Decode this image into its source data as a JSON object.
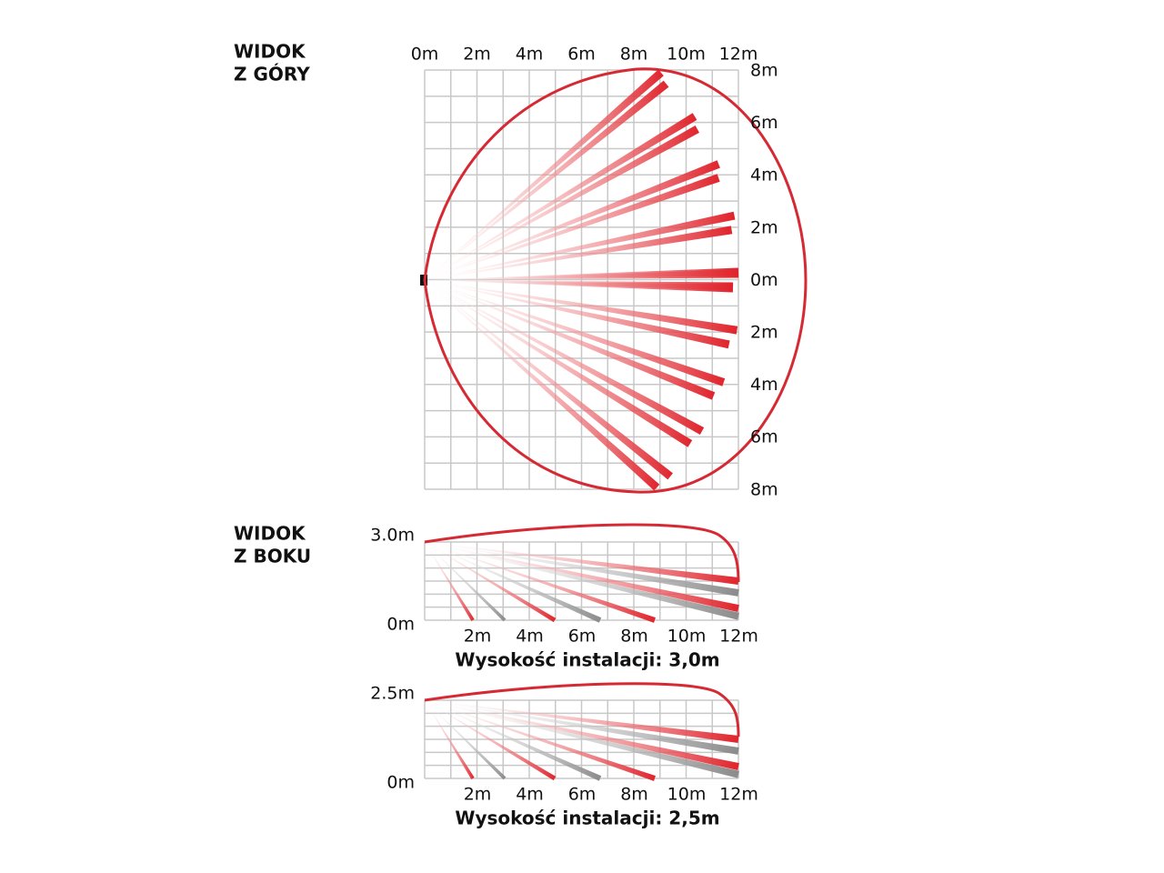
{
  "top_view": {
    "title": [
      "WIDOK",
      "Z GÓRY"
    ],
    "x_labels": [
      "0m",
      "2m",
      "4m",
      "6m",
      "8m",
      "10m",
      "12m"
    ],
    "y_labels": [
      "8m",
      "6m",
      "4m",
      "2m",
      "0m",
      "2m",
      "4m",
      "6m",
      "8m"
    ]
  },
  "side_title": [
    "WIDOK",
    "Z BOKU"
  ],
  "side_views": [
    {
      "top_label": "3.0m",
      "zero_label": "0m",
      "x_labels": [
        "2m",
        "4m",
        "6m",
        "8m",
        "10m",
        "12m"
      ],
      "caption": "Wysokość instalacji: 3,0m"
    },
    {
      "top_label": "2.5m",
      "zero_label": "0m",
      "x_labels": [
        "2m",
        "4m",
        "6m",
        "8m",
        "10m",
        "12m"
      ],
      "caption": "Wysokość instalacji: 2,5m"
    }
  ]
}
